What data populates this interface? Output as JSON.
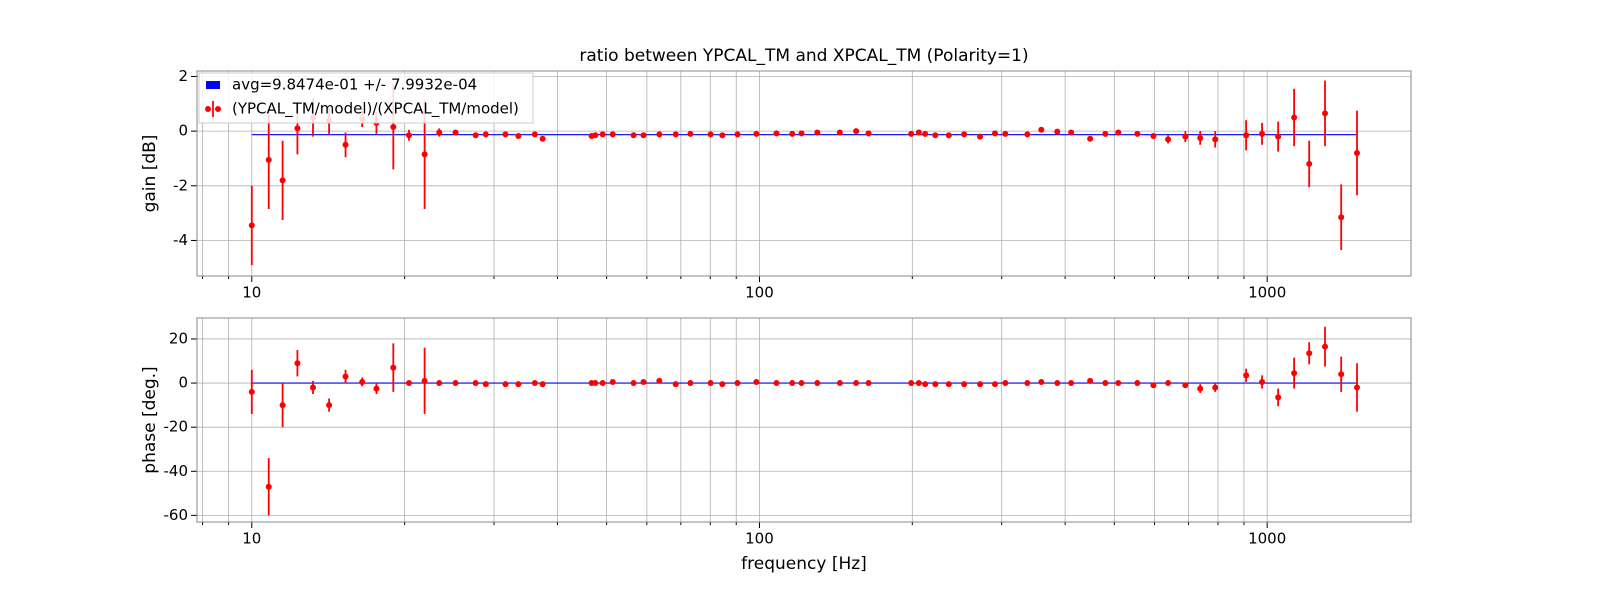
{
  "chart_data": [
    {
      "type": "errorbar",
      "title": "ratio between YPCAL_TM and XPCAL_TM (Polarity=1)",
      "ylabel": "gain [dB]",
      "xlog": true,
      "grid": true,
      "legend": "upper left",
      "xlim": [
        7.8,
        1920
      ],
      "xticks": [
        10,
        100,
        1000
      ],
      "xminor_ticks": [
        8,
        9,
        20,
        30,
        40,
        50,
        60,
        70,
        80,
        90,
        200,
        300,
        400,
        500,
        600,
        700,
        800,
        900
      ],
      "ylim": [
        -5.3,
        2.2
      ],
      "yticks": [
        -4,
        -2,
        0,
        2
      ],
      "series": [
        {
          "name": "avg=9.8474e-01 +/- 7.9932e-04",
          "kind": "band",
          "color": "#0000ff",
          "x": [
            10,
            1503
          ],
          "values": [
            -0.13,
            -0.13
          ]
        },
        {
          "name": "(YPCAL_TM/model)/(XPCAL_TM/model)",
          "kind": "points",
          "color": "#ff0000",
          "x": [
            10,
            10.8,
            11.5,
            12.3,
            13.2,
            14.2,
            15.3,
            16.5,
            17.6,
            19.0,
            20.4,
            21.9,
            23.4,
            25.2,
            27.6,
            28.9,
            31.6,
            33.5,
            36.1,
            37.4,
            46.7,
            47.5,
            49.1,
            51.4,
            56.5,
            59.1,
            63.5,
            68.4,
            73.1,
            80.1,
            84.5,
            90.5,
            98.6,
            108,
            116,
            121,
            130,
            144,
            155,
            164,
            199,
            206,
            212,
            222,
            236,
            253,
            272,
            291,
            305,
            337,
            359,
            386,
            411,
            448,
            480,
            509,
            555,
            597,
            638,
            690,
            738,
            790,
            909,
            977,
            1051,
            1130,
            1210,
            1300,
            1399,
            1503
          ],
          "values": [
            -3.45,
            -1.05,
            -1.8,
            0.1,
            0.5,
            0.4,
            -0.5,
            0.45,
            0.3,
            0.15,
            -0.15,
            -0.85,
            -0.05,
            -0.05,
            -0.15,
            -0.12,
            -0.12,
            -0.18,
            -0.12,
            -0.28,
            -0.18,
            -0.15,
            -0.12,
            -0.12,
            -0.15,
            -0.15,
            -0.12,
            -0.12,
            -0.1,
            -0.12,
            -0.15,
            -0.12,
            -0.1,
            -0.08,
            -0.1,
            -0.08,
            -0.05,
            -0.05,
            0,
            -0.08,
            -0.1,
            -0.05,
            -0.1,
            -0.15,
            -0.15,
            -0.12,
            -0.2,
            -0.08,
            -0.1,
            -0.12,
            0.05,
            -0.02,
            -0.05,
            -0.28,
            -0.1,
            -0.05,
            -0.1,
            -0.18,
            -0.3,
            -0.2,
            -0.25,
            -0.3,
            -0.15,
            -0.1,
            -0.2,
            0.5,
            -1.2,
            0.65,
            -3.15,
            -0.8
          ],
          "errors": [
            1.45,
            1.8,
            1.45,
            0.95,
            0.7,
            0.5,
            0.45,
            0.3,
            0.4,
            1.55,
            0.2,
            2.0,
            0.15,
            0.08,
            0.08,
            0.08,
            0.08,
            0.08,
            0.08,
            0.08,
            0.06,
            0.06,
            0.06,
            0.06,
            0.06,
            0.06,
            0.06,
            0.06,
            0.06,
            0.06,
            0.06,
            0.06,
            0.06,
            0.06,
            0.06,
            0.06,
            0.06,
            0.06,
            0.06,
            0.06,
            0.06,
            0.06,
            0.06,
            0.06,
            0.06,
            0.06,
            0.06,
            0.06,
            0.06,
            0.06,
            0.06,
            0.06,
            0.06,
            0.06,
            0.06,
            0.06,
            0.06,
            0.1,
            0.15,
            0.2,
            0.25,
            0.3,
            0.55,
            0.4,
            0.55,
            1.05,
            0.85,
            1.2,
            1.2,
            1.55
          ]
        }
      ]
    },
    {
      "type": "errorbar",
      "ylabel": "phase [deg.]",
      "xlabel": "frequency [Hz]",
      "xlog": true,
      "grid": true,
      "xlim": [
        7.8,
        1920
      ],
      "xticks": [
        10,
        100,
        1000
      ],
      "xminor_ticks": [
        8,
        9,
        20,
        30,
        40,
        50,
        60,
        70,
        80,
        90,
        200,
        300,
        400,
        500,
        600,
        700,
        800,
        900
      ],
      "ylim": [
        -63,
        29.5
      ],
      "yticks": [
        -60,
        -40,
        -20,
        0,
        20
      ],
      "series": [
        {
          "kind": "band",
          "color": "#0000ff",
          "x": [
            10,
            1503
          ],
          "values": [
            0,
            0
          ]
        },
        {
          "kind": "points",
          "color": "#ff0000",
          "x": [
            10,
            10.8,
            11.5,
            12.3,
            13.2,
            14.2,
            15.3,
            16.5,
            17.6,
            19.0,
            20.4,
            21.9,
            23.4,
            25.2,
            27.6,
            28.9,
            31.6,
            33.5,
            36.1,
            37.4,
            46.7,
            47.5,
            49.1,
            51.4,
            56.5,
            59.1,
            63.5,
            68.4,
            73.1,
            80.1,
            84.5,
            90.5,
            98.6,
            108,
            116,
            121,
            130,
            144,
            155,
            164,
            199,
            206,
            212,
            222,
            236,
            253,
            272,
            291,
            305,
            337,
            359,
            386,
            411,
            448,
            480,
            509,
            555,
            597,
            638,
            690,
            738,
            790,
            909,
            977,
            1051,
            1130,
            1210,
            1300,
            1399,
            1503
          ],
          "values": [
            -4,
            -47,
            -10,
            9,
            -2,
            -10,
            3,
            0.5,
            -2.5,
            7,
            0,
            1,
            0,
            0,
            0,
            -0.5,
            -0.5,
            -0.5,
            0,
            -0.5,
            0,
            0,
            0,
            0.5,
            0,
            0.5,
            1,
            -0.5,
            0,
            0,
            -0.5,
            0,
            0.5,
            0,
            0,
            0,
            0,
            0,
            0,
            0,
            0,
            0,
            -0.5,
            -0.5,
            -0.5,
            -0.5,
            -0.5,
            -0.5,
            0,
            0,
            0.5,
            0,
            0,
            1,
            0,
            0,
            0,
            -1,
            0,
            -1,
            -2.5,
            -2,
            3.5,
            0.5,
            -6.5,
            4.5,
            13.5,
            16.5,
            4,
            -2
          ],
          "errors": [
            10,
            13,
            10,
            6,
            3,
            3,
            3,
            2,
            2.5,
            11,
            1,
            15,
            1,
            0.8,
            0.8,
            0.8,
            0.8,
            0.8,
            0.8,
            0.8,
            0.8,
            0.8,
            0.8,
            0.8,
            0.8,
            0.8,
            0.8,
            0.8,
            0.8,
            0.8,
            0.8,
            0.8,
            0.8,
            0.8,
            0.8,
            0.8,
            0.8,
            0.8,
            0.8,
            0.8,
            0.8,
            0.8,
            0.8,
            0.8,
            0.8,
            0.8,
            0.8,
            0.8,
            0.8,
            0.8,
            0.8,
            0.8,
            0.8,
            0.8,
            0.8,
            0.8,
            0.8,
            1,
            1,
            1,
            2,
            2,
            3,
            3,
            4,
            7,
            5,
            9,
            8,
            11
          ]
        }
      ]
    }
  ]
}
